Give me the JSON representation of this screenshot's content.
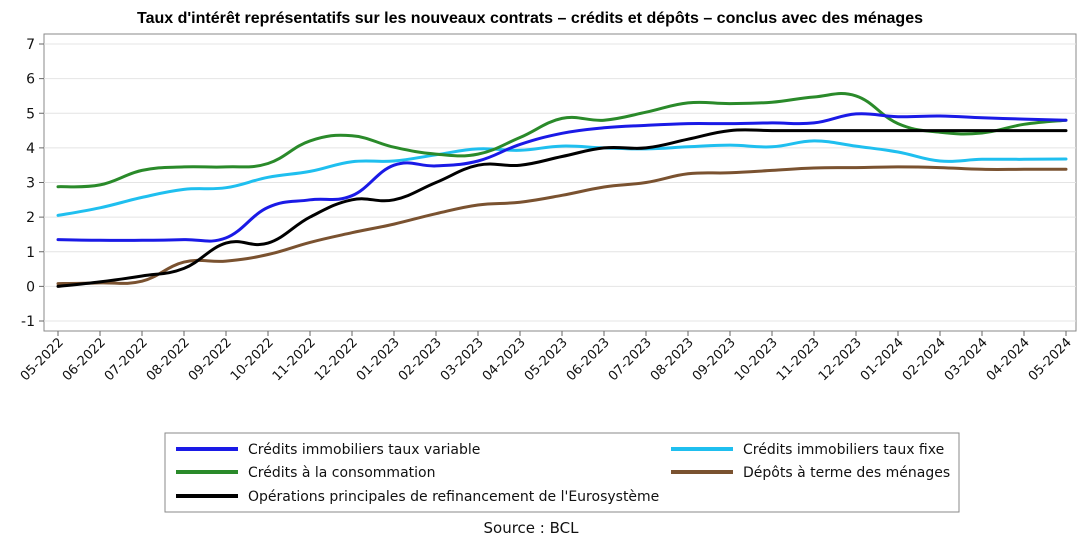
{
  "chart_data": {
    "type": "line",
    "title": "Taux d'intérêt représentatifs sur les nouveaux contrats – crédits et dépôts – conclus avec des ménages",
    "xlabel": "",
    "ylabel": "",
    "ylim": [
      -1,
      7
    ],
    "yticks": [
      "-1",
      "0",
      "1",
      "2",
      "3",
      "4",
      "5",
      "6",
      "7"
    ],
    "grid": true,
    "legend_position": "bottom",
    "categories": [
      "05-2022",
      "06-2022",
      "07-2022",
      "08-2022",
      "09-2022",
      "10-2022",
      "11-2022",
      "12-2022",
      "01-2023",
      "02-2023",
      "03-2023",
      "04-2023",
      "05-2023",
      "06-2023",
      "07-2023",
      "08-2023",
      "09-2023",
      "10-2023",
      "11-2023",
      "12-2023",
      "01-2024",
      "02-2024",
      "03-2024",
      "04-2024",
      "05-2024"
    ],
    "series": [
      {
        "name": "Crédits immobiliers taux variable",
        "color": "#1a1ae6",
        "values": [
          1.35,
          1.33,
          1.33,
          1.35,
          1.4,
          2.28,
          2.5,
          2.62,
          3.5,
          3.48,
          3.62,
          4.1,
          4.42,
          4.58,
          4.65,
          4.7,
          4.7,
          4.72,
          4.72,
          4.98,
          4.9,
          4.92,
          4.87,
          4.83,
          4.8
        ]
      },
      {
        "name": "Crédits immobiliers taux fixe",
        "color": "#1fbfef",
        "values": [
          2.05,
          2.27,
          2.57,
          2.8,
          2.85,
          3.15,
          3.32,
          3.6,
          3.62,
          3.8,
          3.97,
          3.93,
          4.05,
          4.0,
          3.97,
          4.03,
          4.08,
          4.03,
          4.2,
          4.05,
          3.88,
          3.62,
          3.67,
          3.67,
          3.68
        ]
      },
      {
        "name": "Crédits à la consommation",
        "color": "#2a8a2a",
        "values": [
          2.88,
          2.93,
          3.35,
          3.45,
          3.45,
          3.55,
          4.2,
          4.35,
          4.02,
          3.82,
          3.82,
          4.3,
          4.85,
          4.8,
          5.03,
          5.3,
          5.28,
          5.32,
          5.47,
          5.5,
          4.7,
          4.45,
          4.43,
          4.68,
          4.8
        ]
      },
      {
        "name": "Dépôts à terme des ménages",
        "color": "#7a5230",
        "values": [
          0.08,
          0.1,
          0.15,
          0.7,
          0.73,
          0.92,
          1.27,
          1.55,
          1.8,
          2.1,
          2.35,
          2.43,
          2.63,
          2.87,
          3.0,
          3.25,
          3.28,
          3.35,
          3.42,
          3.43,
          3.45,
          3.43,
          3.38,
          3.38,
          3.38
        ]
      },
      {
        "name": "Opérations principales de refinancement de l'Eurosystème",
        "color": "#000000",
        "values": [
          0.0,
          0.13,
          0.3,
          0.52,
          1.25,
          1.25,
          2.0,
          2.5,
          2.5,
          3.0,
          3.5,
          3.5,
          3.75,
          4.0,
          4.0,
          4.25,
          4.5,
          4.5,
          4.5,
          4.5,
          4.5,
          4.5,
          4.5,
          4.5,
          4.5
        ]
      }
    ],
    "source": "Source : BCL"
  }
}
